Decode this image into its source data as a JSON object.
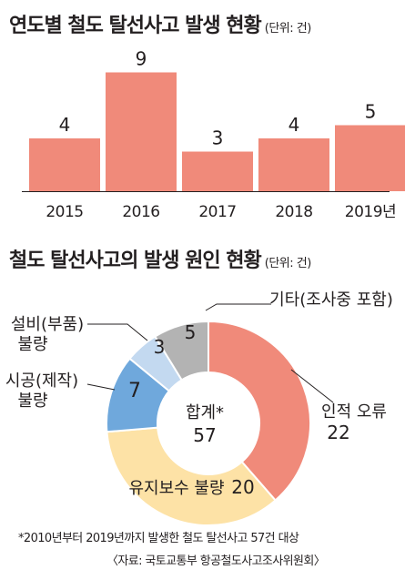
{
  "chart_data": [
    {
      "type": "bar",
      "title": "연도별 철도 탈선사고 발생 현황",
      "unit": "(단위: 건)",
      "categories": [
        "2015",
        "2016",
        "2017",
        "2018",
        "2019년"
      ],
      "values": [
        4,
        9,
        3,
        4,
        5
      ],
      "bar_color": "#f08a7a"
    },
    {
      "type": "pie",
      "title": "철도 탈선사고의 발생 원인 현황",
      "unit": "(단위: 건)",
      "center_label": "합계*",
      "center_value": "57",
      "slices": [
        {
          "label": "인적 오류",
          "value": 22,
          "value_text": "22",
          "color": "#f08a7a"
        },
        {
          "label": "유지보수 불량",
          "value": 20,
          "value_text": "20",
          "color": "#fde2a6"
        },
        {
          "label": "시공(제작) 불량",
          "value": 7,
          "value_text": "7",
          "color": "#6fa8dc"
        },
        {
          "label": "설비(부품) 불량",
          "value": 3,
          "value_text": "3",
          "color": "#c3d9f0"
        },
        {
          "label": "기타(조사중 포함)",
          "value": 5,
          "value_text": "5",
          "color": "#b3b3b3"
        }
      ]
    }
  ],
  "footnote": "*2010년부터 2019년까지 발생한 철도 탈선사고 57건 대상",
  "source": "〈자료: 국토교통부 항공철도사고조사위원회〉"
}
